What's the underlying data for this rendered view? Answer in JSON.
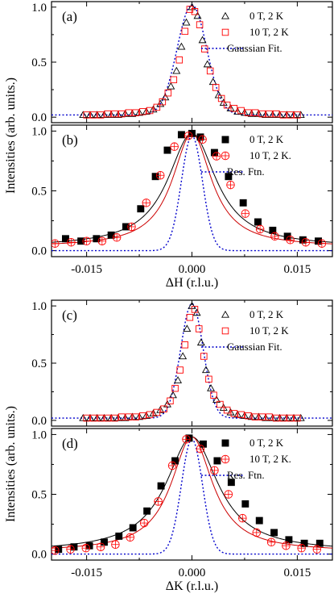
{
  "figure": {
    "ylabel_top": "Intensities (arb. units.)",
    "ylabel_bottom": "Intensities (arb. units.)"
  },
  "chart_data": [
    {
      "panel": "(a)",
      "type": "scatter",
      "xlim": [
        -0.02,
        0.02
      ],
      "ylim": [
        -0.05,
        1.05
      ],
      "yticks": [
        "0.0",
        "0.5",
        "1.0"
      ],
      "xticks": [],
      "xlabel": "",
      "legend": [
        "0 T, 2 K",
        "10 T, 2 K",
        "Gaussian Fit."
      ],
      "series": [
        {
          "name": "0 T, 2 K",
          "marker": "triangle-open",
          "color": "#000000",
          "x": [
            -0.0155,
            -0.0145,
            -0.0135,
            -0.0125,
            -0.0115,
            -0.0105,
            -0.0095,
            -0.0085,
            -0.0075,
            -0.0065,
            -0.0055,
            -0.0045,
            -0.0038,
            -0.003,
            -0.0022,
            -0.0015,
            -0.0008,
            0.0,
            0.0008,
            0.0015,
            0.0022,
            0.003,
            0.0038,
            0.0045,
            0.0055,
            0.0065,
            0.0075,
            0.0085,
            0.0095,
            0.0105,
            0.0115,
            0.0125,
            0.0135,
            0.0145,
            0.0155
          ],
          "values": [
            0.02,
            0.02,
            0.02,
            0.02,
            0.02,
            0.02,
            0.03,
            0.03,
            0.04,
            0.05,
            0.07,
            0.12,
            0.18,
            0.28,
            0.42,
            0.64,
            0.86,
            1.0,
            0.92,
            0.7,
            0.48,
            0.32,
            0.2,
            0.13,
            0.08,
            0.05,
            0.04,
            0.03,
            0.03,
            0.02,
            0.02,
            0.02,
            0.02,
            0.02,
            0.02
          ]
        },
        {
          "name": "10 T, 2 K",
          "marker": "square-open",
          "color": "#ff0000",
          "x": [
            -0.015,
            -0.014,
            -0.013,
            -0.012,
            -0.011,
            -0.01,
            -0.009,
            -0.008,
            -0.007,
            -0.006,
            -0.005,
            -0.0042,
            -0.0034,
            -0.0026,
            -0.0018,
            -0.001,
            -0.0003,
            0.0004,
            0.0011,
            0.0018,
            0.0026,
            0.0034,
            0.0042,
            0.005,
            0.006,
            0.007,
            0.008,
            0.009,
            0.01,
            0.011,
            0.012,
            0.013,
            0.014,
            0.015
          ],
          "values": [
            0.02,
            0.02,
            0.02,
            0.03,
            0.03,
            0.03,
            0.04,
            0.04,
            0.05,
            0.06,
            0.09,
            0.14,
            0.22,
            0.34,
            0.52,
            0.78,
            0.98,
            0.96,
            0.84,
            0.62,
            0.42,
            0.27,
            0.17,
            0.11,
            0.08,
            0.06,
            0.04,
            0.04,
            0.03,
            0.03,
            0.03,
            0.02,
            0.02,
            0.02
          ]
        }
      ],
      "fit": {
        "name": "Gaussian Fit.",
        "style": "dotted",
        "color": "#0000cc",
        "center": 0.0,
        "sigma": 0.0021,
        "amplitude": 1.0,
        "baseline": 0.02
      }
    },
    {
      "panel": "(b)",
      "type": "scatter",
      "xlim": [
        -0.02,
        0.02
      ],
      "ylim": [
        -0.05,
        1.05
      ],
      "yticks": [
        "0.0",
        "0.5",
        "1.0"
      ],
      "xticks": [
        "-0.015",
        "0.000",
        "0.015"
      ],
      "xlabel": "ΔH (r.l.u.)",
      "legend": [
        "0 T, 2 K",
        "10 T, 2 K.",
        "Res. Ftn."
      ],
      "series": [
        {
          "name": "0 T, 2 K",
          "marker": "square-filled",
          "color": "#000000",
          "x": [
            -0.018,
            -0.0158,
            -0.0136,
            -0.0115,
            -0.0094,
            -0.0073,
            -0.0052,
            -0.0035,
            -0.0015,
            0.0,
            0.0012,
            0.0032,
            0.0052,
            0.0073,
            0.0094,
            0.0115,
            0.0136,
            0.0158,
            0.018
          ],
          "values": [
            0.1,
            0.08,
            0.1,
            0.13,
            0.2,
            0.35,
            0.62,
            0.84,
            0.97,
            0.98,
            0.95,
            0.82,
            0.62,
            0.4,
            0.24,
            0.17,
            0.12,
            0.09,
            0.08
          ]
        },
        {
          "name": "10 T, 2 K.",
          "marker": "circle-open-cross",
          "color": "#ff0000",
          "x": [
            -0.0195,
            -0.0172,
            -0.015,
            -0.0128,
            -0.0107,
            -0.0086,
            -0.0065,
            -0.0045,
            -0.0025,
            -0.0005,
            0.0015,
            0.0035,
            0.0055,
            0.0076,
            0.0097,
            0.0118,
            0.014,
            0.0162,
            0.0185
          ],
          "values": [
            0.06,
            0.07,
            0.08,
            0.08,
            0.11,
            0.2,
            0.4,
            0.63,
            0.87,
            0.96,
            0.93,
            0.79,
            0.55,
            0.31,
            0.18,
            0.12,
            0.09,
            0.07,
            0.06
          ]
        }
      ],
      "fits": [
        {
          "name": "0 T, 2 K fit",
          "style": "solid",
          "color": "#000000",
          "shape": "lorentzian",
          "center": 0.0,
          "gamma": 0.0042,
          "amplitude": 0.95,
          "baseline": 0.03
        },
        {
          "name": "10 T, 2 K fit",
          "style": "solid",
          "color": "#cc0000",
          "shape": "lorentzian",
          "center": 0.0,
          "gamma": 0.0034,
          "amplitude": 0.95,
          "baseline": 0.03
        },
        {
          "name": "Res. Ftn.",
          "style": "dotted",
          "color": "#0000cc",
          "shape": "gaussian",
          "center": 0.0,
          "sigma": 0.0015,
          "amplitude": 0.96,
          "baseline": 0.0
        }
      ]
    },
    {
      "panel": "(c)",
      "type": "scatter",
      "xlim": [
        -0.02,
        0.02
      ],
      "ylim": [
        -0.05,
        1.05
      ],
      "yticks": [
        "0.0",
        "0.5",
        "1.0"
      ],
      "xticks": [],
      "xlabel": "",
      "legend": [
        "0 T, 2 K",
        "10 T, 2 K",
        "Gaussian Fit."
      ],
      "series": [
        {
          "name": "0 T, 2 K",
          "marker": "triangle-open",
          "color": "#000000",
          "x": [
            -0.0155,
            -0.0145,
            -0.0135,
            -0.0125,
            -0.0115,
            -0.0105,
            -0.0095,
            -0.0085,
            -0.0075,
            -0.0065,
            -0.0055,
            -0.0045,
            -0.0035,
            -0.0027,
            -0.002,
            -0.0013,
            -0.0007,
            0.0,
            0.0007,
            0.0013,
            0.002,
            0.0027,
            0.0035,
            0.0045,
            0.0055,
            0.0065,
            0.0075,
            0.0085,
            0.0095,
            0.0105,
            0.0115,
            0.0125,
            0.0135,
            0.0145,
            0.0155
          ],
          "values": [
            0.02,
            0.02,
            0.02,
            0.02,
            0.02,
            0.02,
            0.02,
            0.03,
            0.03,
            0.04,
            0.06,
            0.09,
            0.14,
            0.22,
            0.35,
            0.56,
            0.8,
            1.0,
            0.94,
            0.68,
            0.44,
            0.28,
            0.18,
            0.11,
            0.07,
            0.05,
            0.04,
            0.03,
            0.03,
            0.02,
            0.02,
            0.02,
            0.02,
            0.02,
            0.02
          ]
        },
        {
          "name": "10 T, 2 K",
          "marker": "square-open",
          "color": "#ff0000",
          "x": [
            -0.015,
            -0.014,
            -0.013,
            -0.012,
            -0.011,
            -0.01,
            -0.009,
            -0.008,
            -0.007,
            -0.006,
            -0.005,
            -0.004,
            -0.0031,
            -0.0024,
            -0.0017,
            -0.001,
            -0.0003,
            0.0004,
            0.001,
            0.0017,
            0.0024,
            0.0031,
            0.004,
            0.005,
            0.006,
            0.007,
            0.008,
            0.009,
            0.01,
            0.011,
            0.012,
            0.013,
            0.014,
            0.015
          ],
          "values": [
            0.02,
            0.02,
            0.02,
            0.02,
            0.02,
            0.03,
            0.03,
            0.03,
            0.04,
            0.05,
            0.07,
            0.1,
            0.17,
            0.28,
            0.44,
            0.66,
            0.9,
            0.97,
            0.8,
            0.56,
            0.36,
            0.22,
            0.14,
            0.09,
            0.06,
            0.05,
            0.04,
            0.03,
            0.03,
            0.03,
            0.02,
            0.02,
            0.02,
            0.02
          ]
        }
      ],
      "fit": {
        "name": "Gaussian Fit.",
        "style": "dotted",
        "color": "#0000cc",
        "center": 0.0,
        "sigma": 0.0016,
        "amplitude": 1.0,
        "baseline": 0.02
      }
    },
    {
      "panel": "(d)",
      "type": "scatter",
      "xlim": [
        -0.02,
        0.02
      ],
      "ylim": [
        -0.05,
        1.05
      ],
      "yticks": [
        "0.0",
        "0.5",
        "1.0"
      ],
      "xticks": [
        "-0.015",
        "0.000",
        "0.015"
      ],
      "xlabel": "ΔK (r.l.u.)",
      "legend": [
        "0 T, 2 K",
        "10 T, 2 K.",
        "Res. Ftn."
      ],
      "series": [
        {
          "name": "0 T, 2 K",
          "marker": "square-filled",
          "color": "#000000",
          "x": [
            -0.019,
            -0.0168,
            -0.0146,
            -0.0125,
            -0.0104,
            -0.0084,
            -0.0064,
            -0.0044,
            -0.0024,
            -0.0004,
            0.0016,
            0.0036,
            0.0056,
            0.0076,
            0.0096,
            0.0117,
            0.0138,
            0.016,
            0.0182
          ],
          "values": [
            0.04,
            0.06,
            0.07,
            0.1,
            0.15,
            0.22,
            0.36,
            0.57,
            0.78,
            0.97,
            0.92,
            0.78,
            0.6,
            0.42,
            0.28,
            0.18,
            0.12,
            0.09,
            0.09
          ]
        },
        {
          "name": "10 T, 2 K.",
          "marker": "circle-open-cross",
          "color": "#ff0000",
          "x": [
            -0.0195,
            -0.0173,
            -0.0151,
            -0.013,
            -0.0109,
            -0.0088,
            -0.0068,
            -0.0048,
            -0.0028,
            -0.0008,
            0.0012,
            0.0032,
            0.0052,
            0.0072,
            0.0092,
            0.0113,
            0.0134,
            0.0156,
            0.0178
          ],
          "values": [
            0.03,
            0.04,
            0.05,
            0.06,
            0.08,
            0.14,
            0.26,
            0.44,
            0.74,
            0.96,
            0.88,
            0.7,
            0.5,
            0.3,
            0.18,
            0.1,
            0.07,
            0.05,
            0.04
          ]
        }
      ],
      "fits": [
        {
          "name": "0 T, 2 K fit",
          "style": "solid",
          "color": "#000000",
          "shape": "lorentzian",
          "center": 0.0,
          "gamma": 0.0045,
          "amplitude": 0.96,
          "baseline": 0.02
        },
        {
          "name": "10 T, 2 K fit",
          "style": "solid",
          "color": "#cc0000",
          "shape": "lorentzian",
          "center": 0.0,
          "gamma": 0.0036,
          "amplitude": 0.96,
          "baseline": 0.02
        },
        {
          "name": "Res. Ftn.",
          "style": "dotted",
          "color": "#0000cc",
          "shape": "gaussian",
          "center": 0.0,
          "sigma": 0.0015,
          "amplitude": 0.96,
          "baseline": 0.0
        }
      ]
    }
  ]
}
